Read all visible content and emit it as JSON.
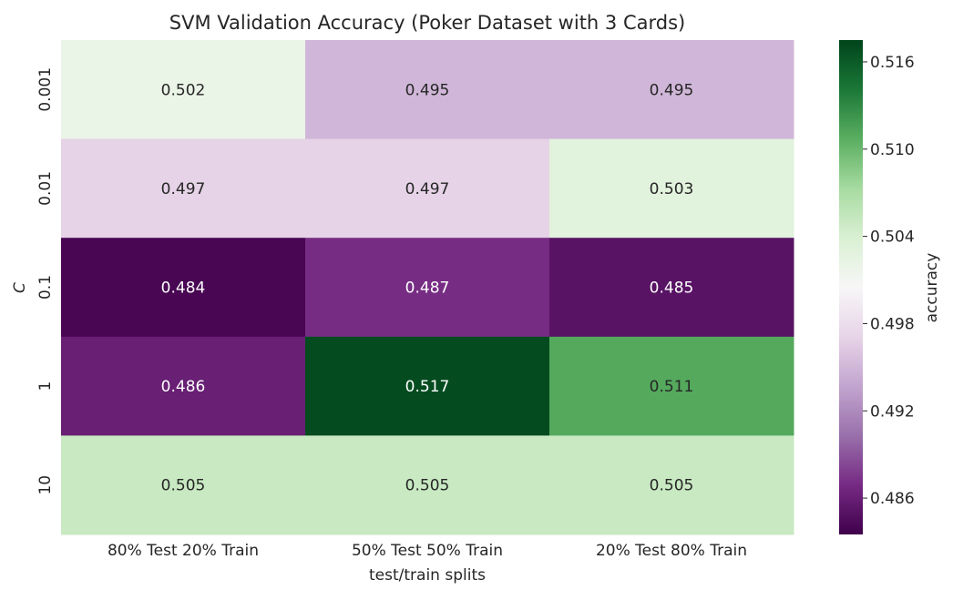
{
  "chart_data": {
    "type": "heatmap",
    "title": "SVM Validation Accuracy (Poker Dataset with 3 Cards)",
    "xlabel": "test/train splits",
    "ylabel": "C",
    "x_categories": [
      "80% Test 20% Train",
      "50% Test 50% Train",
      "20% Test 80% Train"
    ],
    "y_categories": [
      "0.001",
      "0.01",
      "0.1",
      "1",
      "10"
    ],
    "values": [
      [
        0.502,
        0.495,
        0.495
      ],
      [
        0.497,
        0.497,
        0.503
      ],
      [
        0.484,
        0.487,
        0.485
      ],
      [
        0.486,
        0.517,
        0.511
      ],
      [
        0.505,
        0.505,
        0.505
      ]
    ],
    "value_format": "0.000",
    "colormap": "PRGn",
    "vmin": 0.4835,
    "vmax": 0.5175,
    "colorbar": {
      "label": "accuracy",
      "ticks": [
        0.486,
        0.492,
        0.498,
        0.504,
        0.51,
        0.516
      ],
      "tick_labels": [
        "0.486",
        "0.492",
        "0.498",
        "0.504",
        "0.510",
        "0.516"
      ]
    },
    "grid": false,
    "annotation_colors": {
      "dark": "#262626",
      "light": "#ffffff"
    }
  }
}
